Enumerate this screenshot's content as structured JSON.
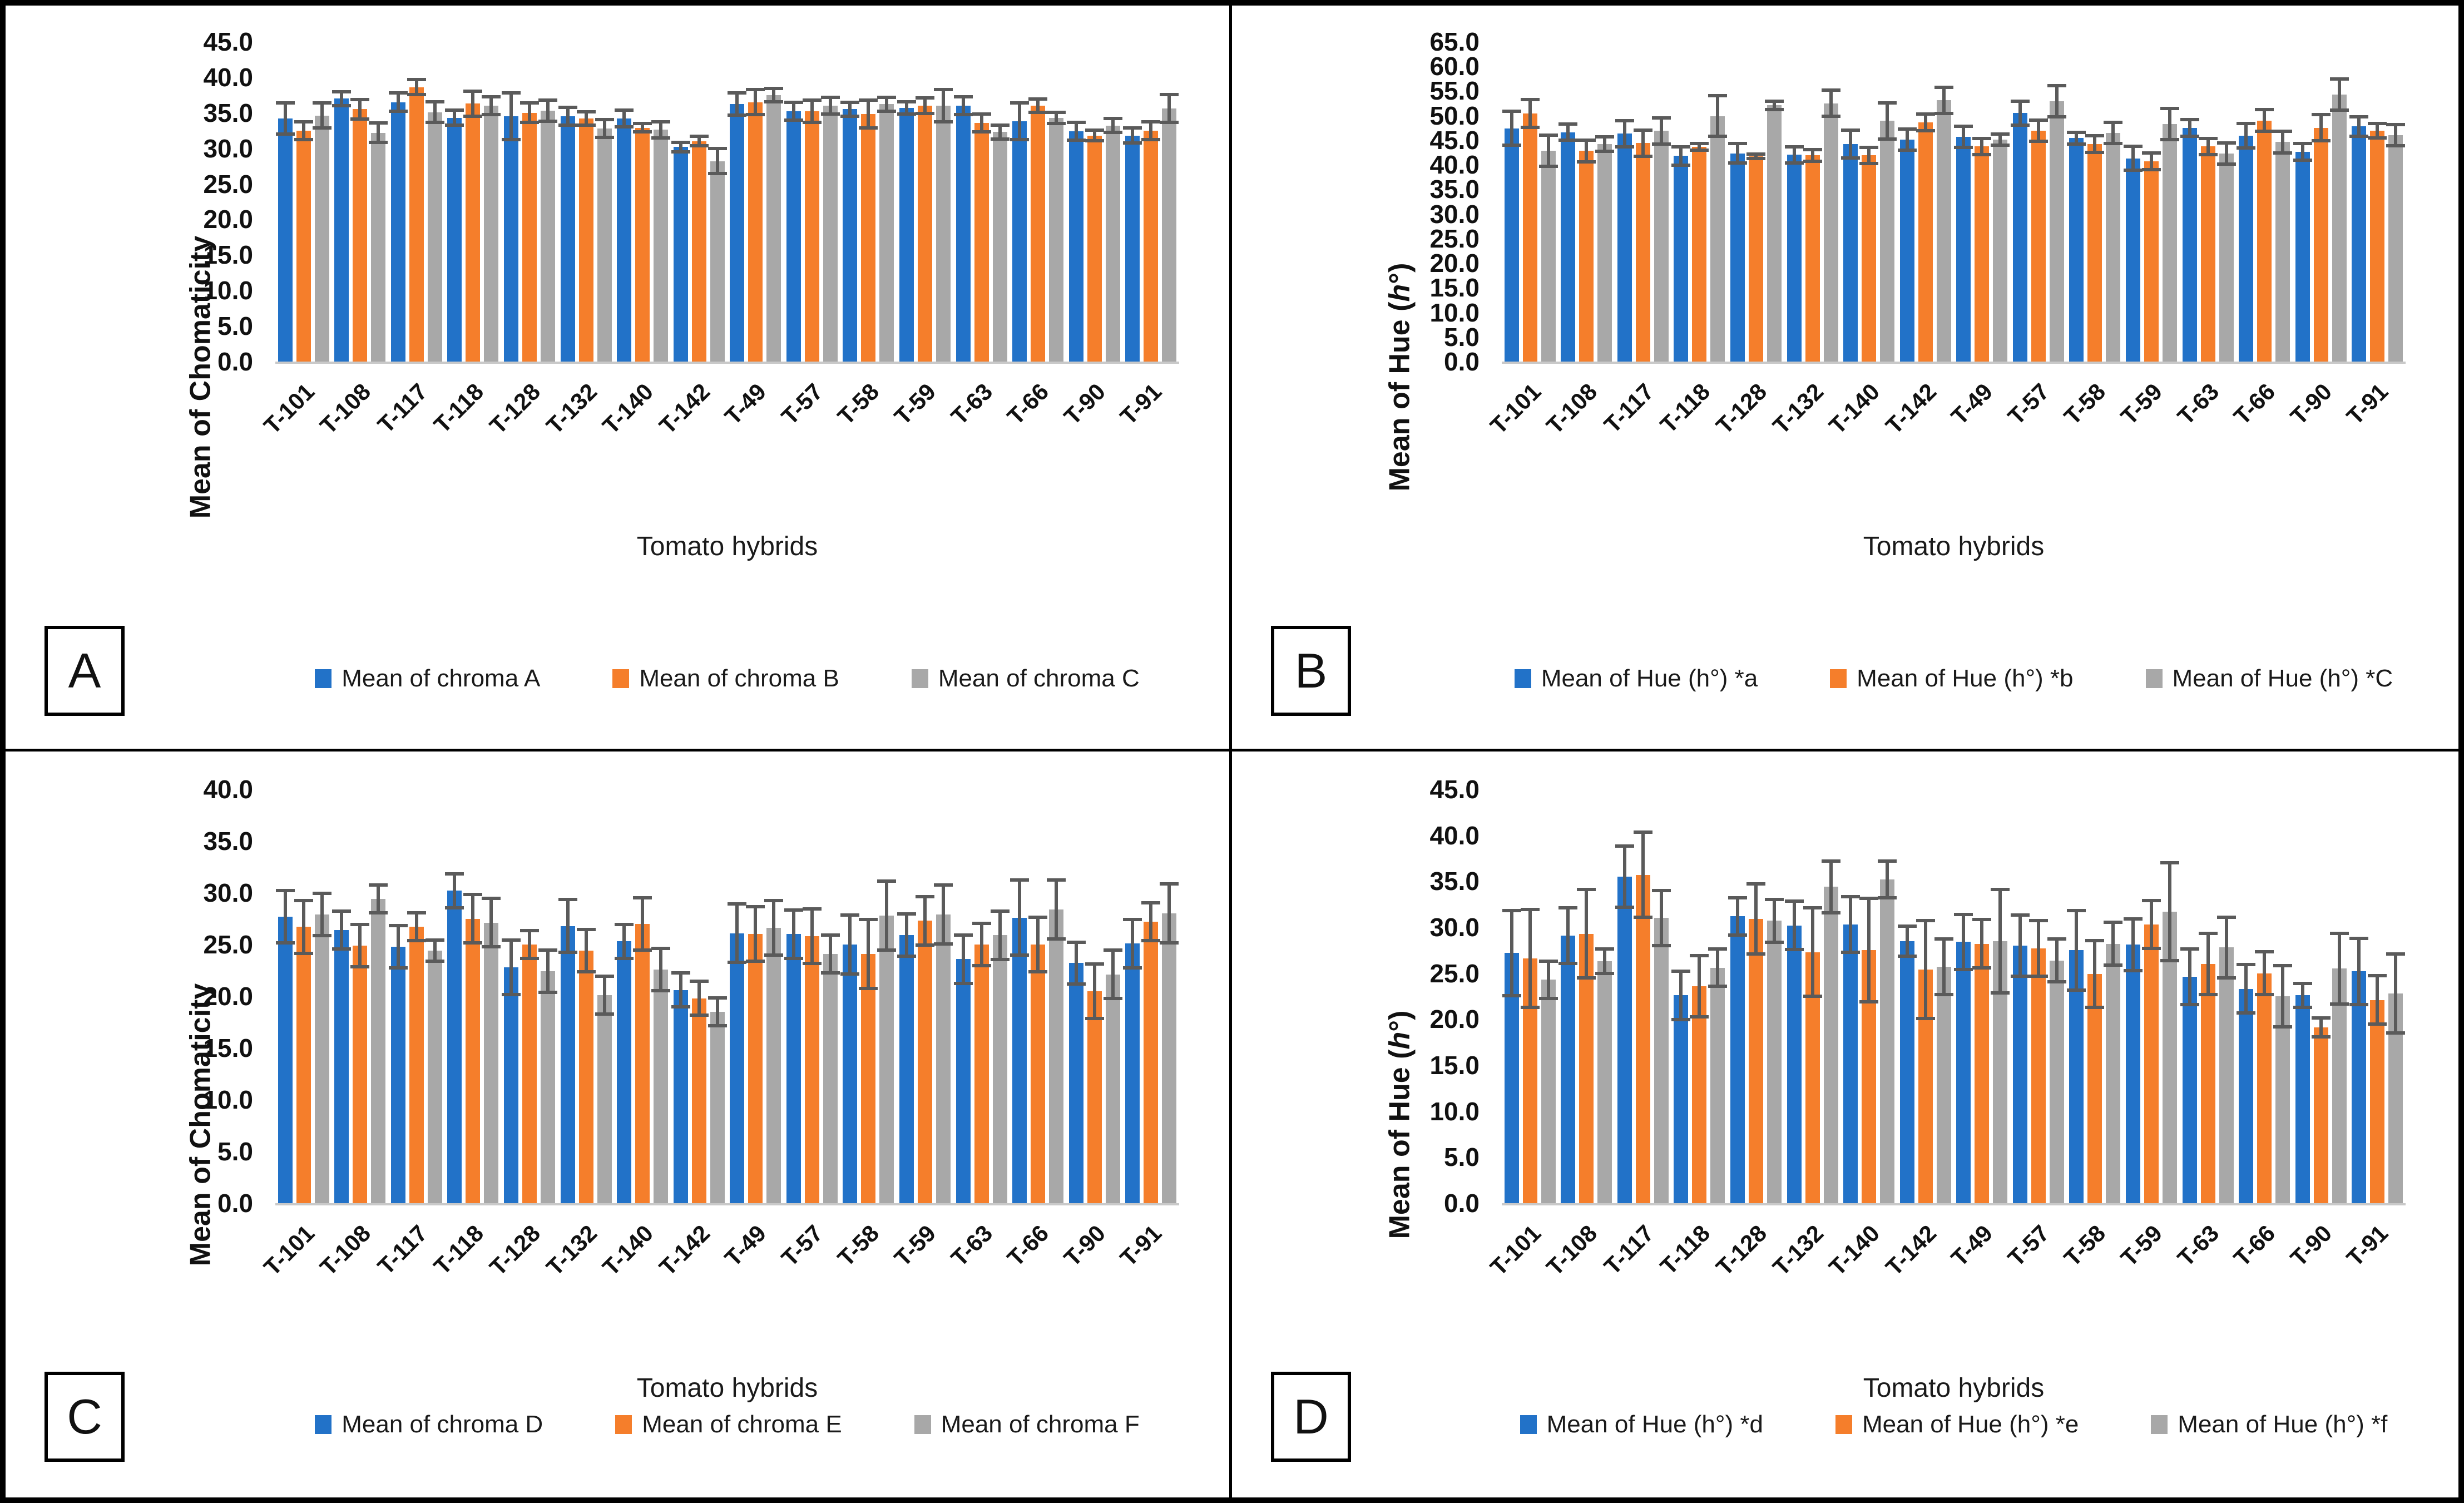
{
  "figure_background": "#ffffff",
  "series_colors": {
    "blue": "#2272C8",
    "orange": "#F57E2B",
    "gray": "#A8A8A8"
  },
  "error_bar_color": "#5a5a5a",
  "chart_data": [
    {
      "type": "bar",
      "panel_label": "A",
      "title": "",
      "ylabel": "Mean of Chomaticity",
      "xlabel": "Tomato hybrids",
      "ylim": [
        0,
        45
      ],
      "ytick_step": 5,
      "grid": false,
      "legend_position": "bottom",
      "error_bars": true,
      "categories": [
        "T-101",
        "T-108",
        "T-117",
        "T-118",
        "T-128",
        "T-132",
        "T-140",
        "T-142",
        "T-49",
        "T-57",
        "T-58",
        "T-59",
        "T-63",
        "T-66",
        "T-90",
        "T-91"
      ],
      "series": [
        {
          "name": "Mean of chroma A",
          "color_key": "blue",
          "values": [
            34.2,
            37.0,
            36.5,
            34.3,
            34.5,
            34.5,
            34.2,
            30.2,
            36.2,
            35.2,
            35.5,
            35.7,
            36.0,
            33.8,
            32.4,
            31.8
          ],
          "errors": [
            2.4,
            1.2,
            1.5,
            1.3,
            3.5,
            1.5,
            1.4,
            0.9,
            1.8,
            1.5,
            1.2,
            1.1,
            1.5,
            2.8,
            1.5,
            1.3
          ]
        },
        {
          "name": "Mean of chroma B",
          "color_key": "orange",
          "values": [
            32.5,
            35.5,
            38.6,
            36.3,
            35.0,
            34.2,
            32.9,
            31.0,
            36.5,
            35.2,
            34.8,
            36.0,
            33.6,
            36.0,
            31.8,
            32.5
          ],
          "errors": [
            1.5,
            1.6,
            1.3,
            2.0,
            1.6,
            1.2,
            0.8,
            0.9,
            2.0,
            1.8,
            2.2,
            1.3,
            1.5,
            1.2,
            1.0,
            1.5
          ]
        },
        {
          "name": "Mean of chroma C",
          "color_key": "gray",
          "values": [
            34.6,
            32.2,
            35.1,
            36.0,
            35.3,
            32.8,
            32.6,
            28.2,
            37.5,
            36.0,
            36.2,
            36.0,
            32.3,
            34.3,
            33.2,
            35.6
          ],
          "errors": [
            2.0,
            1.6,
            1.7,
            1.5,
            1.7,
            1.5,
            1.4,
            2.0,
            1.2,
            1.4,
            1.2,
            2.5,
            1.2,
            1.0,
            1.2,
            2.2
          ]
        }
      ]
    },
    {
      "type": "bar",
      "panel_label": "B",
      "title": "",
      "ylabel": "Mean of Hue (h°)",
      "xlabel": "Tomato hybrids",
      "ylim": [
        0,
        65
      ],
      "ytick_step": 5,
      "grid": false,
      "legend_position": "bottom",
      "error_bars": true,
      "categories": [
        "T-101",
        "T-108",
        "T-117",
        "T-118",
        "T-128",
        "T-132",
        "T-140",
        "T-142",
        "T-49",
        "T-57",
        "T-58",
        "T-59",
        "T-63",
        "T-66",
        "T-90",
        "T-91"
      ],
      "series": [
        {
          "name": "Mean of Hue (h°) *a",
          "color_key": "blue",
          "values": [
            47.4,
            46.6,
            46.3,
            41.8,
            42.3,
            42.0,
            44.2,
            45.1,
            45.7,
            50.5,
            45.4,
            41.3,
            47.5,
            45.9,
            42.6,
            47.8
          ],
          "errors": [
            3.8,
            2.0,
            3.0,
            2.2,
            2.3,
            2.0,
            3.2,
            2.5,
            2.5,
            2.8,
            1.5,
            2.8,
            2.0,
            2.8,
            2.0,
            2.3
          ]
        },
        {
          "name": "Mean of Hue (h°) *b",
          "color_key": "orange",
          "values": [
            50.4,
            42.8,
            44.4,
            43.6,
            41.7,
            41.9,
            41.9,
            48.6,
            43.7,
            46.9,
            44.2,
            40.7,
            43.7,
            49.0,
            47.5,
            46.9
          ],
          "errors": [
            3.2,
            2.5,
            3.0,
            1.0,
            0.8,
            1.5,
            2.0,
            2.0,
            2.0,
            2.5,
            2.0,
            2.0,
            2.0,
            2.5,
            3.0,
            1.8
          ]
        },
        {
          "name": "Mean of Hue (h°) *C",
          "color_key": "gray",
          "values": [
            42.8,
            44.2,
            46.9,
            49.9,
            52.1,
            52.5,
            48.9,
            53.1,
            45.1,
            52.9,
            46.5,
            48.3,
            42.3,
            44.6,
            54.3,
            46.0
          ],
          "errors": [
            3.5,
            1.8,
            3.0,
            4.5,
            1.2,
            3.0,
            4.0,
            3.0,
            1.5,
            3.5,
            2.5,
            3.5,
            2.5,
            2.5,
            3.5,
            2.5
          ]
        }
      ]
    },
    {
      "type": "bar",
      "panel_label": "C",
      "title": "",
      "ylabel": "Mean of Chomaticity",
      "xlabel": "Tomato hybrids",
      "ylim": [
        0,
        40
      ],
      "ytick_step": 5,
      "grid": false,
      "legend_position": "bottom",
      "error_bars": true,
      "categories": [
        "T-101",
        "T-108",
        "T-117",
        "T-118",
        "T-128",
        "T-132",
        "T-140",
        "T-142",
        "T-49",
        "T-57",
        "T-58",
        "T-59",
        "T-63",
        "T-66",
        "T-90",
        "T-91"
      ],
      "series": [
        {
          "name": "Mean of chroma D",
          "color_key": "blue",
          "values": [
            27.7,
            26.4,
            24.8,
            30.2,
            22.8,
            26.8,
            25.3,
            20.6,
            26.1,
            26.0,
            25.0,
            25.9,
            23.6,
            27.6,
            23.2,
            25.1
          ],
          "errors": [
            2.7,
            2.0,
            2.2,
            1.8,
            2.8,
            2.7,
            1.8,
            1.8,
            3.0,
            2.5,
            3.0,
            2.2,
            2.5,
            3.8,
            2.2,
            2.5
          ]
        },
        {
          "name": "Mean of chroma E",
          "color_key": "orange",
          "values": [
            26.7,
            24.9,
            26.7,
            27.5,
            25.0,
            24.4,
            27.0,
            19.8,
            26.0,
            25.8,
            24.1,
            27.3,
            25.0,
            25.0,
            20.5,
            27.2
          ],
          "errors": [
            2.7,
            2.2,
            1.5,
            2.5,
            1.5,
            2.2,
            2.7,
            1.8,
            2.8,
            2.8,
            3.5,
            2.5,
            2.2,
            2.8,
            2.8,
            2.0
          ]
        },
        {
          "name": "Mean of chroma F",
          "color_key": "gray",
          "values": [
            27.9,
            29.4,
            24.4,
            27.1,
            22.4,
            20.1,
            22.6,
            18.5,
            26.6,
            24.1,
            27.8,
            27.9,
            25.9,
            28.4,
            22.1,
            28.0
          ],
          "errors": [
            2.2,
            1.5,
            1.2,
            2.5,
            2.2,
            2.0,
            2.2,
            1.5,
            2.8,
            2.0,
            3.5,
            3.0,
            2.5,
            3.0,
            2.5,
            3.0
          ]
        }
      ]
    },
    {
      "type": "bar",
      "panel_label": "D",
      "title": "",
      "ylabel": "Mean of Hue (h°)",
      "xlabel": "Tomato hybrids",
      "ylim": [
        0,
        45
      ],
      "ytick_step": 5,
      "grid": false,
      "legend_position": "bottom",
      "error_bars": true,
      "categories": [
        "T-101",
        "T-108",
        "T-117",
        "T-118",
        "T-128",
        "T-132",
        "T-140",
        "T-142",
        "T-49",
        "T-57",
        "T-58",
        "T-59",
        "T-63",
        "T-66",
        "T-90",
        "T-91"
      ],
      "series": [
        {
          "name": "Mean of Hue (h°) *d",
          "color_key": "blue",
          "values": [
            27.2,
            29.1,
            35.5,
            22.6,
            31.2,
            30.2,
            30.3,
            28.5,
            28.4,
            28.0,
            27.5,
            28.1,
            24.6,
            23.3,
            22.6,
            25.2
          ],
          "errors": [
            4.8,
            3.2,
            3.5,
            2.8,
            2.2,
            2.8,
            3.2,
            1.8,
            3.2,
            3.5,
            4.5,
            3.0,
            3.2,
            2.8,
            1.5,
            3.8
          ]
        },
        {
          "name": "Mean of Hue (h°) *e",
          "color_key": "orange",
          "values": [
            26.6,
            29.3,
            35.7,
            23.6,
            30.9,
            27.3,
            27.5,
            25.4,
            28.2,
            27.7,
            24.9,
            30.3,
            26.0,
            25.0,
            19.1,
            22.1
          ],
          "errors": [
            5.5,
            5.0,
            4.8,
            3.5,
            4.0,
            5.0,
            5.8,
            5.5,
            2.8,
            3.2,
            3.8,
            2.8,
            3.5,
            2.5,
            1.2,
            2.8
          ]
        },
        {
          "name": "Mean of Hue (h°) *f",
          "color_key": "gray",
          "values": [
            24.3,
            26.3,
            31.0,
            25.6,
            30.7,
            34.4,
            35.2,
            25.7,
            28.5,
            26.4,
            28.2,
            31.7,
            27.8,
            22.5,
            25.5,
            22.8
          ],
          "errors": [
            2.2,
            1.5,
            3.2,
            2.2,
            2.5,
            3.0,
            2.2,
            3.2,
            5.8,
            2.5,
            2.5,
            5.5,
            3.5,
            3.5,
            4.0,
            4.5
          ]
        }
      ]
    }
  ]
}
